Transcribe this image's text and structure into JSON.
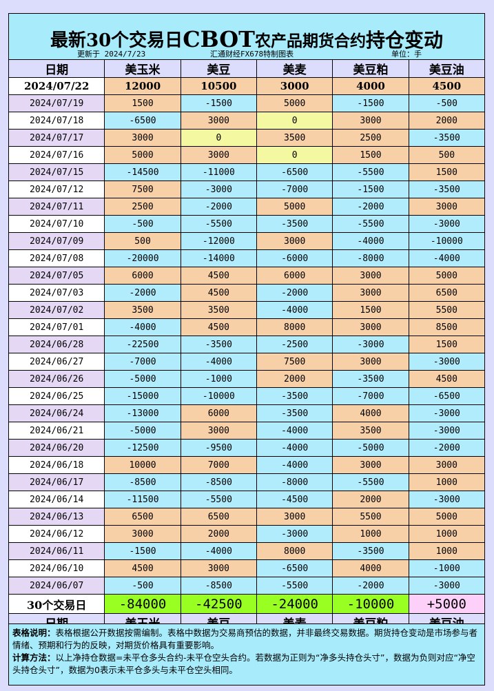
{
  "title": {
    "part1": "最新30个交易日",
    "part2": "CBOT",
    "part3": "农产品期货合约",
    "part4": "持仓变动"
  },
  "subheader": {
    "updated": "更新于 2024/7/23",
    "source": "汇通财经FX678特制图表",
    "unit": "单位：手"
  },
  "columns": [
    "日期",
    "美玉米",
    "美豆",
    "美麦",
    "美豆粕",
    "美豆油"
  ],
  "latest": {
    "date": "2024/07/22",
    "values": [
      "12000",
      "10500",
      "3000",
      "4000",
      "4500"
    ]
  },
  "rows": [
    {
      "date": "2024/07/19",
      "values": [
        "1500",
        "-1500",
        "5000",
        "-1500",
        "-500"
      ]
    },
    {
      "date": "2024/07/18",
      "values": [
        "-6500",
        "3000",
        "0",
        "3000",
        "2000"
      ]
    },
    {
      "date": "2024/07/17",
      "values": [
        "3000",
        "0",
        "3500",
        "2500",
        "-3500"
      ]
    },
    {
      "date": "2024/07/16",
      "values": [
        "5000",
        "3000",
        "0",
        "1500",
        "500"
      ]
    },
    {
      "date": "2024/07/15",
      "values": [
        "-14500",
        "-11000",
        "-6500",
        "-5500",
        "1500"
      ]
    },
    {
      "date": "2024/07/12",
      "values": [
        "7500",
        "-3000",
        "-7000",
        "-1500",
        "-3500"
      ]
    },
    {
      "date": "2024/07/11",
      "values": [
        "2500",
        "-2000",
        "5000",
        "-2000",
        "3000"
      ]
    },
    {
      "date": "2024/07/10",
      "values": [
        "-500",
        "-5500",
        "-3500",
        "-5500",
        "-3000"
      ]
    },
    {
      "date": "2024/07/09",
      "values": [
        "500",
        "-12000",
        "3000",
        "-4000",
        "-10000"
      ]
    },
    {
      "date": "2024/07/08",
      "values": [
        "-20000",
        "-14000",
        "-6000",
        "-8000",
        "-4000"
      ]
    },
    {
      "date": "2024/07/05",
      "values": [
        "6000",
        "4500",
        "6000",
        "3000",
        "5000"
      ]
    },
    {
      "date": "2024/07/03",
      "values": [
        "-2000",
        "4500",
        "-2000",
        "3000",
        "6500"
      ]
    },
    {
      "date": "2024/07/02",
      "values": [
        "3500",
        "3500",
        "-4000",
        "1500",
        "5500"
      ]
    },
    {
      "date": "2024/07/01",
      "values": [
        "-4000",
        "4500",
        "8000",
        "3000",
        "8500"
      ]
    },
    {
      "date": "2024/06/28",
      "values": [
        "-22500",
        "-3500",
        "-2500",
        "-3000",
        "1500"
      ]
    },
    {
      "date": "2024/06/27",
      "values": [
        "-7000",
        "-4000",
        "7500",
        "3000",
        "-3000"
      ]
    },
    {
      "date": "2024/06/26",
      "values": [
        "-5000",
        "-1000",
        "2000",
        "-3500",
        "4500"
      ]
    },
    {
      "date": "2024/06/25",
      "values": [
        "-15000",
        "-10000",
        "-3500",
        "-7000",
        "-6500"
      ]
    },
    {
      "date": "2024/06/24",
      "values": [
        "-13000",
        "6000",
        "-3500",
        "4000",
        "-3000"
      ]
    },
    {
      "date": "2024/06/21",
      "values": [
        "-5000",
        "3000",
        "-4000",
        "3500",
        "-3000"
      ]
    },
    {
      "date": "2024/06/20",
      "values": [
        "-12500",
        "-9500",
        "-4000",
        "-5000",
        "-2000"
      ]
    },
    {
      "date": "2024/06/18",
      "values": [
        "10000",
        "7000",
        "-4000",
        "3000",
        "3000"
      ]
    },
    {
      "date": "2024/06/17",
      "values": [
        "-8500",
        "-8500",
        "-8000",
        "-5500",
        "1000"
      ]
    },
    {
      "date": "2024/06/14",
      "values": [
        "-11500",
        "-5500",
        "-4500",
        "2000",
        "-3000"
      ]
    },
    {
      "date": "2024/06/13",
      "values": [
        "6500",
        "6500",
        "3000",
        "5500",
        "5000"
      ]
    },
    {
      "date": "2024/06/12",
      "values": [
        "3000",
        "2000",
        "-3000",
        "1000",
        "1000"
      ]
    },
    {
      "date": "2024/06/11",
      "values": [
        "-1500",
        "-4000",
        "8000",
        "-3500",
        "1000"
      ]
    },
    {
      "date": "2024/06/10",
      "values": [
        "4500",
        "3000",
        "-6500",
        "4000",
        "-1000"
      ]
    },
    {
      "date": "2024/06/07",
      "values": [
        "-500",
        "-8500",
        "-5500",
        "-2000",
        "-3000"
      ]
    }
  ],
  "total": {
    "label": "30个交易日",
    "values": [
      "-84000",
      "-42500",
      "-24000",
      "-10000",
      "+5000"
    ]
  },
  "notes": {
    "desc_label": "表格说明：",
    "desc_text": "表格根据公开数据按需编制。表格中数据为交易商预估的数据，并非最终交易数据。期货持仓变动是市场参与者情绪、预期和行为的反映，对期货价格具有重要影响。",
    "calc_label": "计算方法：",
    "calc_text": "以上净持仓数据=未平仓多头合约-未平仓空头合约。若数据为正则为“净多头持仓头寸”，数据为负则对应“净空头持仓头寸”，数据为0表示未平仓多头与未平仓空头相同。"
  },
  "colors": {
    "positive": "#f8d0a8",
    "negative": "#b0ecfc",
    "zero": "#f4f8a0",
    "total_negative": "#99ff22",
    "total_positive": "#fcd0f8",
    "title_bg": "#a8ecfc",
    "page_bg": "#dcdcfc"
  }
}
